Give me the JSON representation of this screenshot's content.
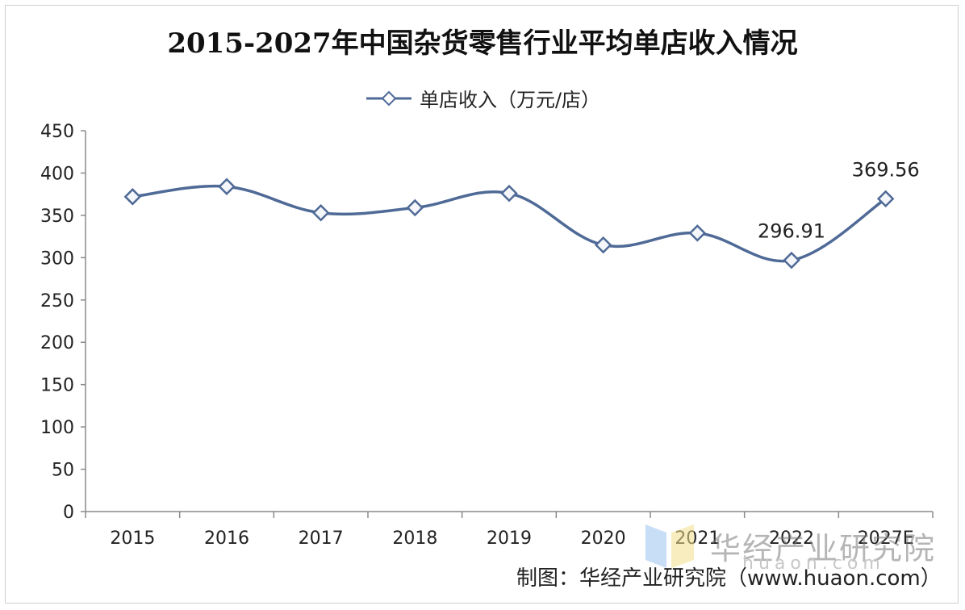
{
  "chart_data": {
    "type": "line",
    "title": "2015-2027年中国杂货零售行业平均单店收入情况",
    "categories": [
      "2015",
      "2016",
      "2017",
      "2018",
      "2019",
      "2020",
      "2021",
      "2022",
      "2027E"
    ],
    "series": [
      {
        "name": "单店收入（万元/店）",
        "values": [
          372,
          384,
          353,
          359,
          376,
          315,
          329,
          296.91,
          369.56
        ],
        "color": "#4f6a96"
      }
    ],
    "data_labels": [
      {
        "index": 7,
        "text": "296.91"
      },
      {
        "index": 8,
        "text": "369.56"
      }
    ],
    "ylim": [
      0,
      450
    ],
    "yticks": [
      "0",
      "50",
      "100",
      "150",
      "200",
      "250",
      "300",
      "350",
      "400",
      "450"
    ],
    "grid": false,
    "legend_position": "top"
  },
  "credit": "制图：华经产业研究院（www.huaon.com）",
  "watermark": {
    "name": "华经产业研究院",
    "url": "huaon.com"
  }
}
